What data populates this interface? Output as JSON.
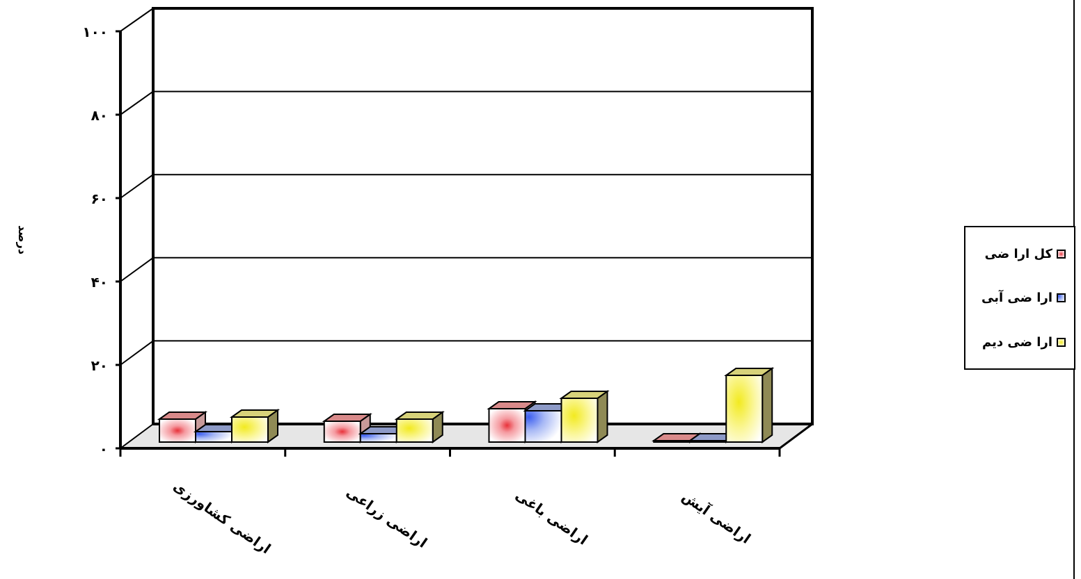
{
  "chart_data": {
    "type": "bar",
    "ylabel": "درصد",
    "ylim": [
      0,
      100
    ],
    "ytick_labels": [
      "۰",
      "۲۰",
      "۴۰",
      "۶۰",
      "۸۰",
      "۱۰۰"
    ],
    "ytick_values": [
      0,
      20,
      40,
      60,
      80,
      100
    ],
    "grid": true,
    "legend_position": "right",
    "categories": [
      "اراضی کشاورزی",
      "اراضی زراعی",
      "اراضی باغی",
      "اراضی آیش"
    ],
    "series": [
      {
        "name": "کل ارا ضی",
        "values": [
          5.5,
          5.0,
          8.0,
          0.1
        ],
        "color": "#f4a0a0"
      },
      {
        "name": "ارا ضی آبی",
        "values": [
          2.5,
          2.0,
          7.5,
          0.1
        ],
        "color": "#8fa6f2"
      },
      {
        "name": "ارا ضی دیم",
        "values": [
          6.0,
          5.5,
          10.5,
          16.0
        ],
        "color": "#f6f080"
      }
    ]
  }
}
